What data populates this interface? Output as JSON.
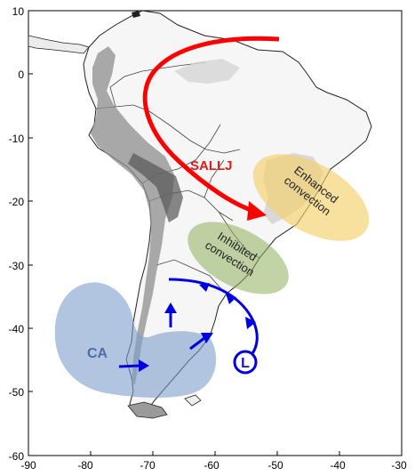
{
  "axes": {
    "x_ticks": [
      "-90",
      "-80",
      "-70",
      "-60",
      "-50",
      "-40",
      "-30"
    ],
    "y_ticks": [
      "10",
      "0",
      "-10",
      "-20",
      "-30",
      "-40",
      "-50",
      "-60"
    ]
  },
  "labels": {
    "sallj": "SALLJ",
    "enhanced_line1": "Enhanced",
    "enhanced_line2": "convection",
    "inhibited_line1": "Inhibited",
    "inhibited_line2": "convection",
    "ca": "CA",
    "low": "L"
  },
  "colors": {
    "sallj_arrow": "#ff0000",
    "front": "#0000e0",
    "enhanced_zone": "#f5cf6a",
    "inhibited_zone": "#8fae5c",
    "ca_zone": "#7f9fcb"
  }
}
